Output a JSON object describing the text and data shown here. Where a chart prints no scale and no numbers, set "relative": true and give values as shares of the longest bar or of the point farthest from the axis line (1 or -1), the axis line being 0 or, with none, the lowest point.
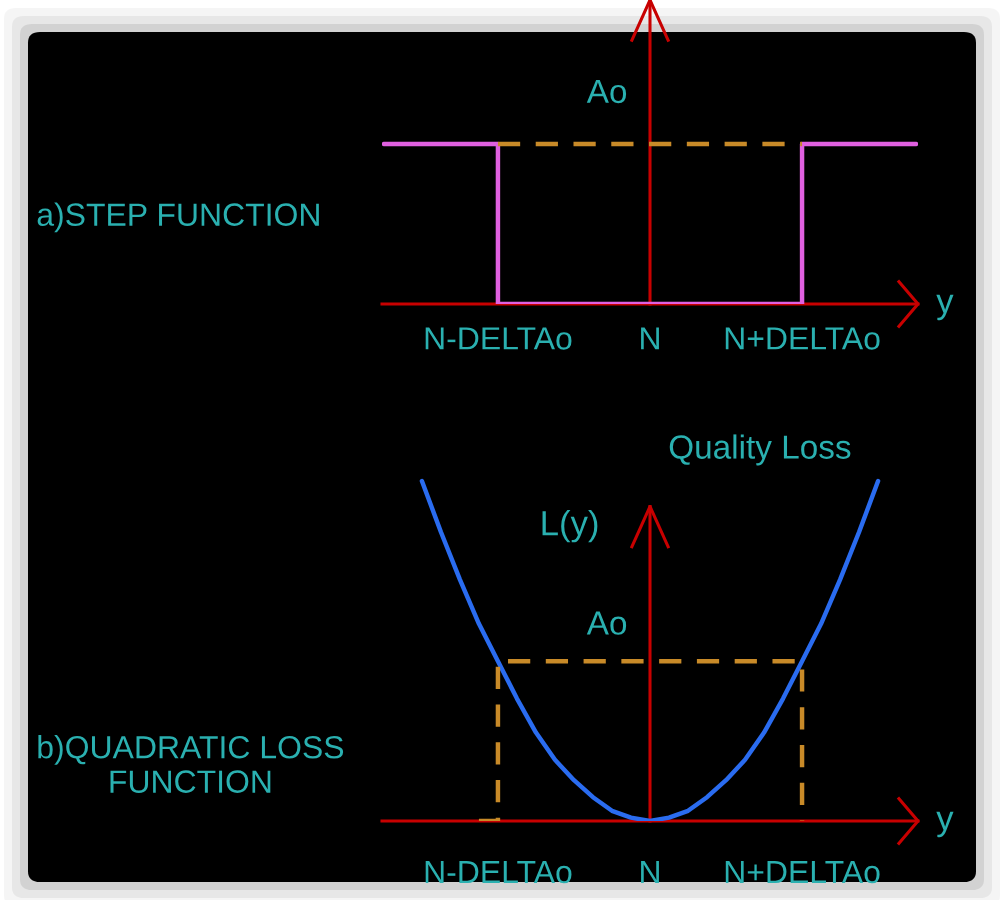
{
  "chart_data": [
    {
      "type": "step",
      "title": "a)STEP FUNCTION",
      "xlabel": "y",
      "relative": true,
      "tick_labels": "x",
      "annotations": [
        "Ao"
      ],
      "categories": [
        null,
        null,
        null,
        null,
        null,
        null,
        "N-DELTAo",
        null,
        null,
        null,
        null,
        null,
        null,
        null,
        "N",
        null,
        null,
        null,
        null,
        null,
        null,
        null,
        "N+DELTAo",
        null,
        null,
        null,
        null,
        null,
        null
      ],
      "series": [
        {
          "type": "step",
          "color": "#e060e0",
          "values": [
            1,
            1,
            1,
            1,
            1,
            1,
            0,
            0,
            0,
            0,
            0,
            0,
            0,
            0,
            0,
            0,
            0,
            0,
            0,
            0,
            0,
            0,
            1,
            1,
            1,
            1,
            1,
            1,
            1
          ]
        },
        {
          "type": "line",
          "line_style": "dashed",
          "color": "#c88a28",
          "values": [
            null,
            null,
            null,
            null,
            null,
            null,
            1,
            1,
            1,
            1,
            1,
            1,
            1,
            1,
            1,
            1,
            1,
            1,
            1,
            1,
            1,
            1,
            1,
            null,
            null,
            null,
            null,
            null,
            null
          ]
        }
      ]
    },
    {
      "type": "line",
      "title": "b)QUADRATIC LOSS\nFUNCTION",
      "xlabel": "y",
      "ylabel": "L(y)",
      "relative": true,
      "tick_labels": "x",
      "annotations": [
        "Ao",
        "Quality Loss"
      ],
      "categories": [
        null,
        null,
        null,
        null,
        null,
        null,
        "N-DELTAo",
        null,
        null,
        null,
        null,
        null,
        null,
        null,
        "N",
        null,
        null,
        null,
        null,
        null,
        null,
        null,
        "N+DELTAo",
        null,
        null,
        null,
        null,
        null,
        null
      ],
      "series": [
        {
          "color": "#2a6cf0",
          "values": [
            null,
            null,
            1,
            0.85,
            0.71,
            0.58,
            0.47,
            0.36,
            0.26,
            0.18,
            0.12,
            0.07,
            0.03,
            0.01,
            0,
            0.01,
            0.03,
            0.07,
            0.12,
            0.18,
            0.26,
            0.36,
            0.47,
            0.58,
            0.71,
            0.85,
            1,
            null,
            null
          ]
        },
        {
          "type": "step",
          "line_style": "dashed",
          "color": "#c88a28",
          "values": [
            null,
            null,
            null,
            null,
            null,
            0,
            0.47,
            0.47,
            0.47,
            0.47,
            0.47,
            0.47,
            0.47,
            0.47,
            0.47,
            0.47,
            0.47,
            0.47,
            0.47,
            0.47,
            0.47,
            0.47,
            0,
            null,
            null,
            null,
            null,
            null,
            null
          ]
        }
      ]
    }
  ]
}
